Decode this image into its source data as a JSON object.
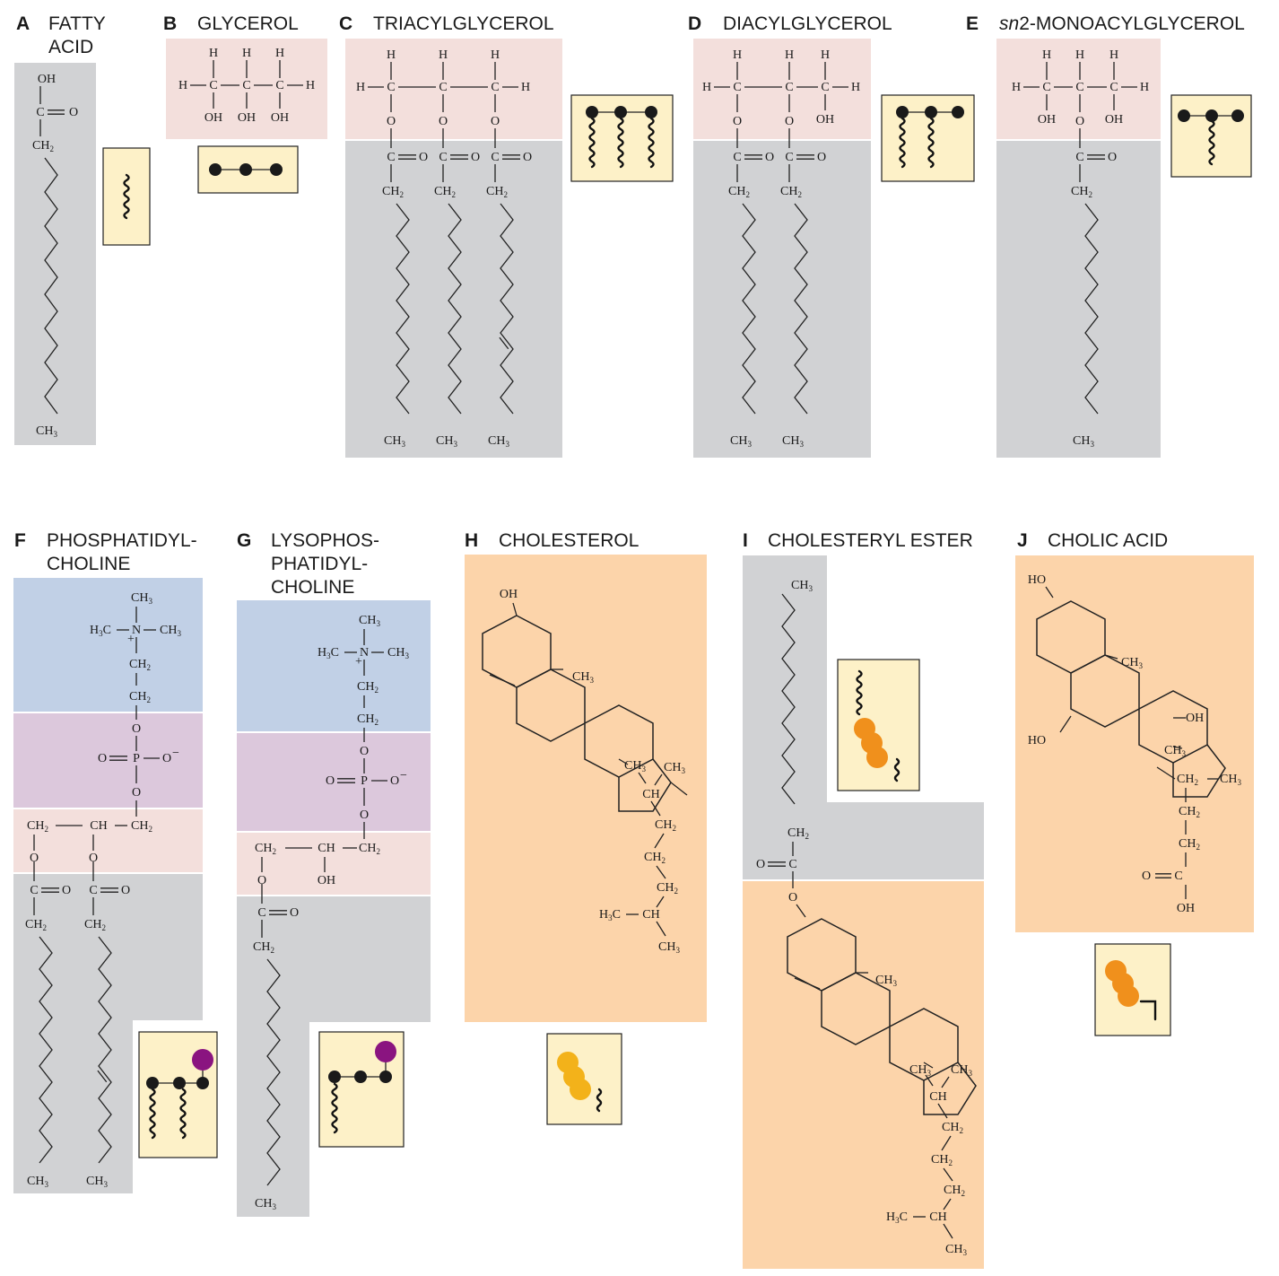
{
  "panels": [
    {
      "letter": "A",
      "title_lines": [
        "FATTY",
        "ACID"
      ]
    },
    {
      "letter": "B",
      "title_lines": [
        "GLYCEROL"
      ]
    },
    {
      "letter": "C",
      "title_lines": [
        "TRIACYLGLYCEROL"
      ]
    },
    {
      "letter": "D",
      "title_lines": [
        "DIACYLGLYCEROL"
      ]
    },
    {
      "letter": "E",
      "title_italic": "sn",
      "title_lines": [
        "2-MONOACYLGLYCEROL"
      ]
    },
    {
      "letter": "F",
      "title_lines": [
        "PHOSPHATIDYL-",
        "CHOLINE"
      ]
    },
    {
      "letter": "G",
      "title_lines": [
        "LYSOPHOS-",
        "PHATIDYL-",
        "CHOLINE"
      ]
    },
    {
      "letter": "H",
      "title_lines": [
        "CHOLESTEROL"
      ]
    },
    {
      "letter": "I",
      "title_lines": [
        "CHOLESTERYL ESTER"
      ]
    },
    {
      "letter": "J",
      "title_lines": [
        "CHOLIC ACID"
      ]
    }
  ],
  "atoms": {
    "H": "H",
    "C": "C",
    "O": "O",
    "OH": "OH",
    "HO": "HO",
    "P": "P",
    "N": "N",
    "CH": "CH",
    "CH2": "CH",
    "CH3": "CH",
    "H3C": "H",
    "sub2": "2",
    "sub3": "3",
    "plus": "+",
    "minus": "−"
  },
  "colors": {
    "acyl_chain": "#d1d2d4",
    "glycerol": "#f3dfdc",
    "choline": "#c1d0e6",
    "phosphate": "#dcc8dc",
    "sterol": "#fcd4aa",
    "icon_fill": "#fdf1c8",
    "sterol_icon_cholesterol": "#f3b21a",
    "sterol_icon_ester": "#f0901c",
    "phosphate_head": "#8a1480"
  },
  "icons": [
    "wavy-chain-icon",
    "glycerol-backbone-icon",
    "sterol-ring-icon",
    "phosphocholine-headgroup-icon"
  ]
}
